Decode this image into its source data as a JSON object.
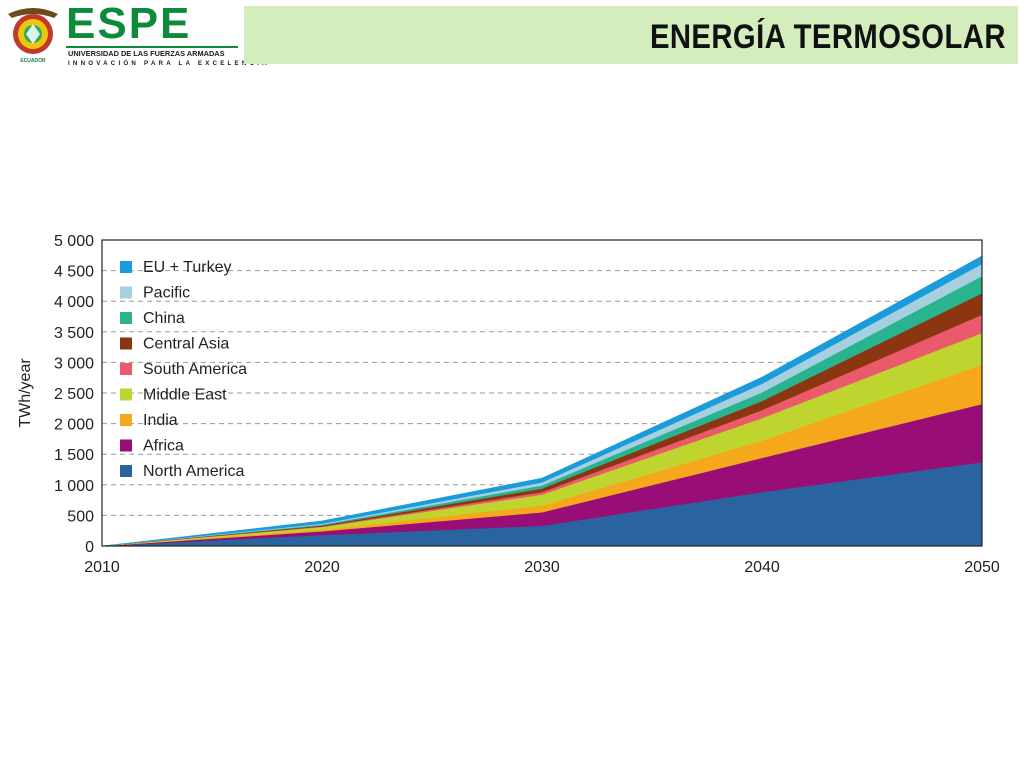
{
  "header": {
    "brand": "ESPE",
    "subtitle": "UNIVERSIDAD DE LAS FUERZAS ARMADAS",
    "tagline": "INNOVACIÓN PARA LA EXCELENCIA",
    "crest_caption": "ECUADOR",
    "title": "ENERGÍA TERMOSOLAR",
    "brand_color": "#0d8a3c",
    "title_band_color": "#d4edbc"
  },
  "chart_data": {
    "type": "area",
    "stacked": true,
    "ylabel": "TWh/year",
    "x": [
      2010,
      2020,
      2030,
      2040,
      2050
    ],
    "ylim": [
      0,
      5000
    ],
    "yticks": [
      0,
      500,
      1000,
      1500,
      2000,
      2500,
      3000,
      3500,
      4000,
      4500,
      5000
    ],
    "ytick_labels": [
      "0",
      "500",
      "1 000",
      "1 500",
      "2 000",
      "2 500",
      "3 000",
      "3 500",
      "4 000",
      "4 500",
      "5 000"
    ],
    "xtick_labels": [
      "2010",
      "2020",
      "2030",
      "2040",
      "2050"
    ],
    "grid": "horizontal dashed",
    "legend_position": "top-left",
    "series": [
      {
        "name": "North America",
        "color": "#2a64a0",
        "values": [
          0,
          180,
          330,
          880,
          1370
        ]
      },
      {
        "name": "Africa",
        "color": "#990e76",
        "values": [
          0,
          60,
          220,
          560,
          950
        ]
      },
      {
        "name": "India",
        "color": "#f6a81c",
        "values": [
          0,
          30,
          110,
          280,
          640
        ]
      },
      {
        "name": "Middle East",
        "color": "#c0d42f",
        "values": [
          0,
          40,
          180,
          370,
          520
        ]
      },
      {
        "name": "South America",
        "color": "#ea5a6a",
        "values": [
          0,
          10,
          40,
          130,
          300
        ]
      },
      {
        "name": "Central Asia",
        "color": "#8c3611",
        "values": [
          0,
          15,
          60,
          150,
          350
        ]
      },
      {
        "name": "China",
        "color": "#2ab38f",
        "values": [
          0,
          15,
          50,
          140,
          280
        ]
      },
      {
        "name": "Pacific",
        "color": "#a6cfe0",
        "values": [
          0,
          15,
          50,
          140,
          200
        ]
      },
      {
        "name": "EU + Turkey",
        "color": "#1a9bdc",
        "values": [
          0,
          45,
          70,
          110,
          130
        ]
      }
    ]
  }
}
